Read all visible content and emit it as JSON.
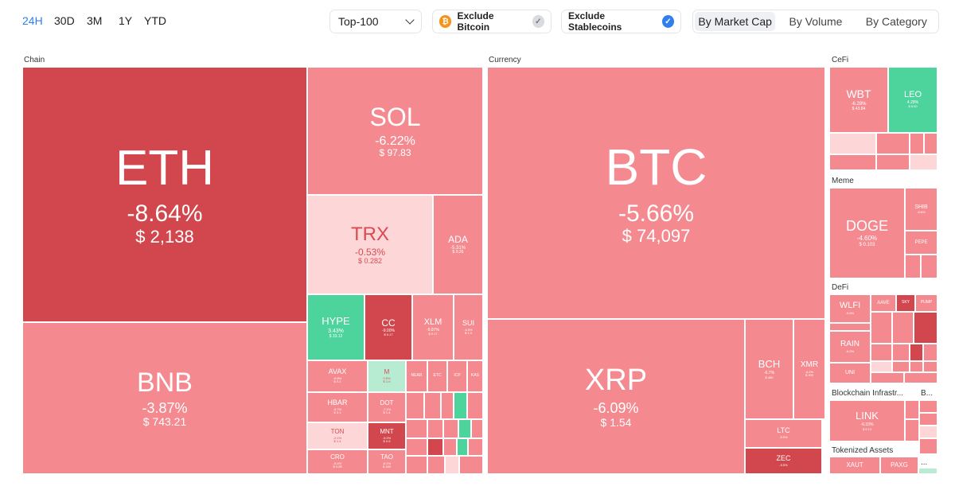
{
  "timeframes": [
    {
      "label": "24H",
      "active": true
    },
    {
      "label": "30D",
      "active": false
    },
    {
      "label": "3M",
      "active": false
    },
    {
      "label": "1Y",
      "active": false
    },
    {
      "label": "YTD",
      "active": false
    }
  ],
  "filters": {
    "top_select": "Top-100",
    "exclude_bitcoin": {
      "label": "Exclude Bitcoin",
      "checked": false,
      "icon": "bitcoin-coin-icon"
    },
    "exclude_stablecoins": {
      "label": "Exclude Stablecoins",
      "checked": true
    }
  },
  "view_modes": [
    {
      "label": "By Market Cap",
      "active": true
    },
    {
      "label": "By Volume",
      "active": false
    },
    {
      "label": "By Category",
      "active": false
    }
  ],
  "sections": {
    "chain": "Chain",
    "currency": "Currency",
    "cefi": "CeFi",
    "meme": "Meme",
    "defi": "DeFi",
    "infra": "Blockchain Infrastr...",
    "infra_b": "B...",
    "tokenized": "Tokenized Assets",
    "more": "..."
  },
  "colors": {
    "red_strong": "#d1474d",
    "red_mid": "#f48a90",
    "red_soft": "#fdd6d7",
    "green": "#4dd39c",
    "green_soft": "#b7ecd3"
  },
  "tiles": [
    {
      "sym": "ETH",
      "chg": "-8.64%",
      "price": "$ 2,138",
      "tone": "strong"
    },
    {
      "sym": "BNB",
      "chg": "-3.87%",
      "price": "$ 743.21",
      "tone": "mid"
    },
    {
      "sym": "SOL",
      "chg": "-6.22%",
      "price": "$ 97.83",
      "tone": "mid"
    },
    {
      "sym": "TRX",
      "chg": "-0.53%",
      "price": "$ 0.282",
      "tone": "soft"
    },
    {
      "sym": "ADA",
      "chg": "-5.31%",
      "price": "$ 0.26",
      "tone": "mid"
    },
    {
      "sym": "HYPE",
      "chg": "3.43%",
      "price": "$ 33.12",
      "tone": "green"
    },
    {
      "sym": "CC",
      "chg": "-9.00%",
      "price": "$ 0.17",
      "tone": "strong"
    },
    {
      "sym": "XLM",
      "chg": "-5.97%",
      "price": "$ 0.17",
      "tone": "mid"
    },
    {
      "sym": "SUI",
      "chg": "-6.5%",
      "price": "$ 1.0",
      "tone": "mid"
    },
    {
      "sym": "AVAX",
      "chg": "-6.8%",
      "price": "$ 9.2",
      "tone": "mid"
    },
    {
      "sym": "M",
      "chg": "0.5%",
      "price": "$ 1.0",
      "tone": "greensoft"
    },
    {
      "sym": "HBAR",
      "chg": "-5.7%",
      "price": "$ 0.1",
      "tone": "mid"
    },
    {
      "sym": "DOT",
      "chg": "-7.1%",
      "price": "$ 1.4",
      "tone": "mid"
    },
    {
      "sym": "TON",
      "chg": "-2.1%",
      "price": "$ 1.4",
      "tone": "soft"
    },
    {
      "sym": "MNT",
      "chg": "-9.2%",
      "price": "$ 0.6",
      "tone": "strong"
    },
    {
      "sym": "CRO",
      "chg": "-5.4%",
      "price": "$ 0.08",
      "tone": "mid"
    },
    {
      "sym": "TAO",
      "chg": "-6.1%",
      "price": "$ 180",
      "tone": "mid"
    },
    {
      "sym": "NEAR",
      "chg": "",
      "price": "",
      "tone": "mid"
    },
    {
      "sym": "ETC",
      "chg": "",
      "price": "",
      "tone": "mid"
    },
    {
      "sym": "ICP",
      "chg": "",
      "price": "",
      "tone": "mid"
    },
    {
      "sym": "KAS",
      "chg": "",
      "price": "",
      "tone": "mid"
    },
    {
      "sym": "BTC",
      "chg": "-5.66%",
      "price": "$ 74,097",
      "tone": "mid"
    },
    {
      "sym": "XRP",
      "chg": "-6.09%",
      "price": "$ 1.54",
      "tone": "mid"
    },
    {
      "sym": "BCH",
      "chg": "-6.7%",
      "price": "$ 480",
      "tone": "mid"
    },
    {
      "sym": "XMR",
      "chg": "-6.2%",
      "price": "$ 300",
      "tone": "mid"
    },
    {
      "sym": "LTC",
      "chg": "-5.9%",
      "price": "$ 60",
      "tone": "mid"
    },
    {
      "sym": "ZEC",
      "chg": "-9.5%",
      "price": "$ 250",
      "tone": "strong"
    },
    {
      "sym": "WBT",
      "chg": "-6.28%",
      "price": "$ 43.84",
      "tone": "mid"
    },
    {
      "sym": "LEO",
      "chg": "4.28%",
      "price": "$ 8.50",
      "tone": "green"
    },
    {
      "sym": "DOGE",
      "chg": "-4.60%",
      "price": "$ 0.103",
      "tone": "mid"
    },
    {
      "sym": "SHIB",
      "chg": "-5.8%",
      "price": "",
      "tone": "mid"
    },
    {
      "sym": "PEPE",
      "chg": "",
      "price": "",
      "tone": "mid"
    },
    {
      "sym": "WLFI",
      "chg": "-5.6%",
      "price": "",
      "tone": "mid"
    },
    {
      "sym": "AAVE",
      "chg": "-6.9%",
      "price": "",
      "tone": "mid"
    },
    {
      "sym": "SKY",
      "chg": "",
      "price": "",
      "tone": "strong"
    },
    {
      "sym": "PUMP",
      "chg": "",
      "price": "",
      "tone": "mid"
    },
    {
      "sym": "ENA",
      "chg": "",
      "price": "",
      "tone": "mid"
    },
    {
      "sym": "RAIN",
      "chg": "-6.2%",
      "price": "",
      "tone": "mid"
    },
    {
      "sym": "UNI",
      "chg": "",
      "price": "",
      "tone": "mid"
    },
    {
      "sym": "LINK",
      "chg": "-6.33%",
      "price": "$ 9.13",
      "tone": "mid"
    },
    {
      "sym": "XAUT",
      "chg": "",
      "price": "",
      "tone": "mid"
    },
    {
      "sym": "PAXG",
      "chg": "",
      "price": "",
      "tone": "mid"
    }
  ]
}
